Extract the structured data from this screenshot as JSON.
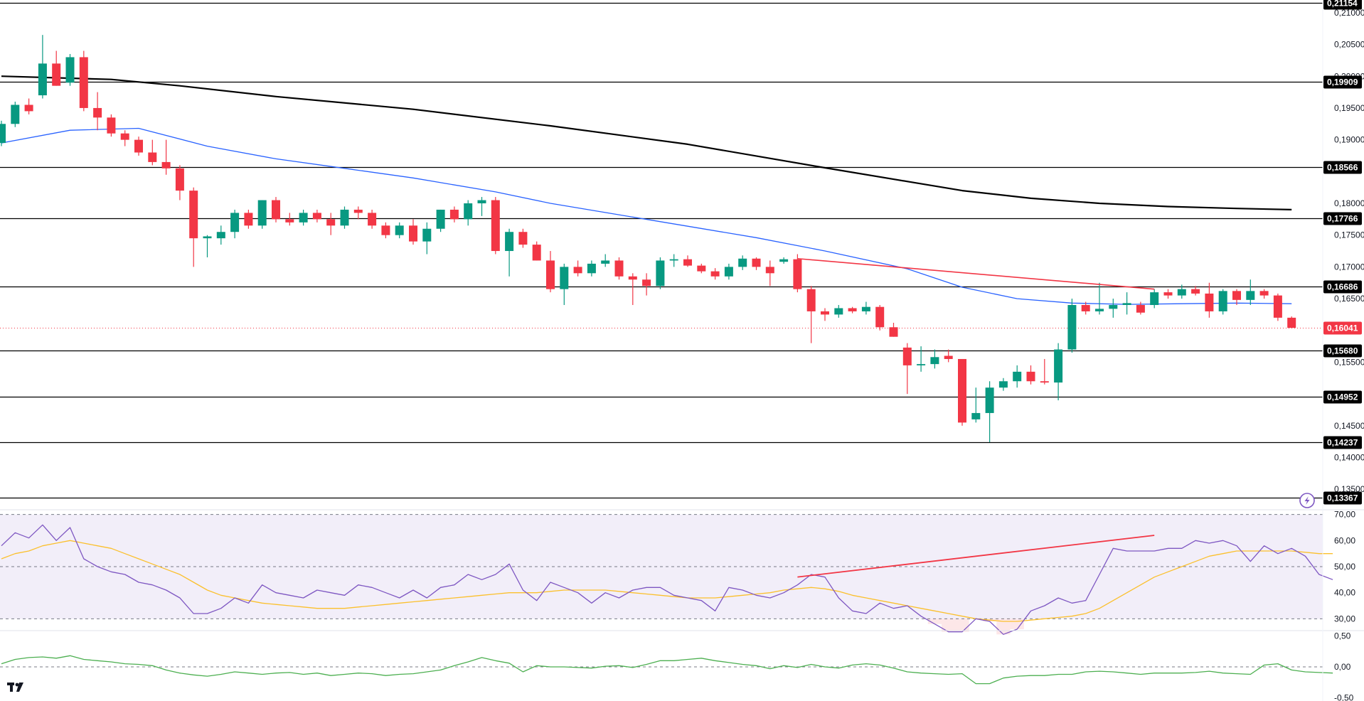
{
  "chart_data": [
    {
      "type": "candlestick",
      "colors": {
        "up": "#089981",
        "down": "#f23645",
        "ma_fast": "#2962ff",
        "ma_slow": "#000000",
        "trendline": "#f23645",
        "level": "#000000",
        "last_price": "#f23645"
      },
      "price_axis": {
        "ylim": [
          0.132,
          0.212
        ],
        "ticks": [
          "0,21000",
          "0,20500",
          "0,20000",
          "0,19500",
          "0,19000",
          "0,18000",
          "0,17500",
          "0,17000",
          "0,16500",
          "0,15500",
          "0,14500",
          "0,14000",
          "0,13500"
        ],
        "tick_values": [
          0.21,
          0.205,
          0.2,
          0.195,
          0.19,
          0.18,
          0.175,
          0.17,
          0.165,
          0.155,
          0.145,
          0.14,
          0.135
        ]
      },
      "levels": [
        {
          "label": "0,21154",
          "value": 0.21154
        },
        {
          "label": "0,19909",
          "value": 0.19909
        },
        {
          "label": "0,18566",
          "value": 0.18566
        },
        {
          "label": "0,17766",
          "value": 0.17766
        },
        {
          "label": "0,16686",
          "value": 0.16686
        },
        {
          "label": "0,15680",
          "value": 0.1568
        },
        {
          "label": "0,14952",
          "value": 0.14952
        },
        {
          "label": "0,14237",
          "value": 0.14237
        },
        {
          "label": "0,13367",
          "value": 0.13367
        }
      ],
      "last_price": {
        "label": "0,16041",
        "value": 0.16041
      },
      "candles": [
        [
          0.1895,
          0.193,
          0.189,
          0.1925
        ],
        [
          0.1925,
          0.196,
          0.192,
          0.1955
        ],
        [
          0.1955,
          0.1965,
          0.194,
          0.1945
        ],
        [
          0.197,
          0.2065,
          0.1965,
          0.202
        ],
        [
          0.202,
          0.204,
          0.1985,
          0.1985
        ],
        [
          0.199,
          0.2035,
          0.1985,
          0.203
        ],
        [
          0.203,
          0.204,
          0.1945,
          0.195
        ],
        [
          0.195,
          0.1975,
          0.1915,
          0.1935
        ],
        [
          0.1935,
          0.194,
          0.1905,
          0.191
        ],
        [
          0.191,
          0.1915,
          0.189,
          0.19
        ],
        [
          0.19,
          0.1905,
          0.1875,
          0.188
        ],
        [
          0.188,
          0.19,
          0.186,
          0.1865
        ],
        [
          0.1865,
          0.19,
          0.1845,
          0.1855
        ],
        [
          0.1855,
          0.186,
          0.1805,
          0.182
        ],
        [
          0.182,
          0.1825,
          0.17,
          0.1745
        ],
        [
          0.1745,
          0.175,
          0.1715,
          0.1748
        ],
        [
          0.1745,
          0.1765,
          0.1735,
          0.1755
        ],
        [
          0.1755,
          0.179,
          0.1745,
          0.1785
        ],
        [
          0.1785,
          0.179,
          0.176,
          0.1765
        ],
        [
          0.1765,
          0.1805,
          0.176,
          0.1805
        ],
        [
          0.1805,
          0.181,
          0.177,
          0.1775
        ],
        [
          0.1775,
          0.1785,
          0.1765,
          0.177
        ],
        [
          0.177,
          0.179,
          0.1765,
          0.1785
        ],
        [
          0.1785,
          0.179,
          0.177,
          0.1775
        ],
        [
          0.1775,
          0.1785,
          0.175,
          0.1765
        ],
        [
          0.1765,
          0.1795,
          0.176,
          0.179
        ],
        [
          0.179,
          0.1795,
          0.1775,
          0.1785
        ],
        [
          0.1785,
          0.179,
          0.176,
          0.1765
        ],
        [
          0.1765,
          0.177,
          0.1745,
          0.175
        ],
        [
          0.175,
          0.177,
          0.1745,
          0.1765
        ],
        [
          0.1765,
          0.1775,
          0.1735,
          0.174
        ],
        [
          0.174,
          0.177,
          0.172,
          0.176
        ],
        [
          0.176,
          0.179,
          0.1755,
          0.179
        ],
        [
          0.179,
          0.1795,
          0.177,
          0.1775
        ],
        [
          0.1775,
          0.1805,
          0.1765,
          0.18
        ],
        [
          0.18,
          0.181,
          0.178,
          0.1805
        ],
        [
          0.1805,
          0.181,
          0.172,
          0.1725
        ],
        [
          0.1725,
          0.176,
          0.1685,
          0.1755
        ],
        [
          0.1755,
          0.176,
          0.173,
          0.1735
        ],
        [
          0.1735,
          0.174,
          0.171,
          0.171
        ],
        [
          0.171,
          0.1725,
          0.166,
          0.1665
        ],
        [
          0.1665,
          0.1705,
          0.164,
          0.17
        ],
        [
          0.17,
          0.171,
          0.1685,
          0.169
        ],
        [
          0.169,
          0.171,
          0.1685,
          0.1705
        ],
        [
          0.1705,
          0.172,
          0.17,
          0.171
        ],
        [
          0.171,
          0.1715,
          0.168,
          0.1685
        ],
        [
          0.1685,
          0.169,
          0.164,
          0.168
        ],
        [
          0.168,
          0.169,
          0.1655,
          0.167
        ],
        [
          0.167,
          0.1715,
          0.1665,
          0.171
        ],
        [
          0.171,
          0.172,
          0.17,
          0.1712
        ],
        [
          0.1712,
          0.1718,
          0.17,
          0.1702
        ],
        [
          0.1702,
          0.1705,
          0.169,
          0.1693
        ],
        [
          0.1693,
          0.1698,
          0.168,
          0.1685
        ],
        [
          0.1685,
          0.1705,
          0.168,
          0.17
        ],
        [
          0.17,
          0.1718,
          0.1695,
          0.1713
        ],
        [
          0.1713,
          0.1715,
          0.1695,
          0.17
        ],
        [
          0.17,
          0.171,
          0.167,
          0.169
        ],
        [
          0.1708,
          0.1715,
          0.1705,
          0.1712
        ],
        [
          0.1712,
          0.172,
          0.166,
          0.1665
        ],
        [
          0.1665,
          0.167,
          0.158,
          0.163
        ],
        [
          0.163,
          0.1635,
          0.1615,
          0.1625
        ],
        [
          0.1625,
          0.164,
          0.162,
          0.1635
        ],
        [
          0.1635,
          0.1637,
          0.1627,
          0.163
        ],
        [
          0.163,
          0.1645,
          0.1625,
          0.1637
        ],
        [
          0.1637,
          0.164,
          0.16,
          0.1605
        ],
        [
          0.1605,
          0.1612,
          0.159,
          0.159
        ],
        [
          0.1573,
          0.158,
          0.15,
          0.1545
        ],
        [
          0.1545,
          0.1575,
          0.1535,
          0.1547
        ],
        [
          0.1547,
          0.157,
          0.154,
          0.1558
        ],
        [
          0.156,
          0.157,
          0.155,
          0.1555
        ],
        [
          0.1555,
          0.1555,
          0.145,
          0.1455
        ],
        [
          0.146,
          0.151,
          0.1455,
          0.147
        ],
        [
          0.147,
          0.152,
          0.1424,
          0.151
        ],
        [
          0.151,
          0.1525,
          0.1505,
          0.152
        ],
        [
          0.152,
          0.1545,
          0.151,
          0.1535
        ],
        [
          0.1535,
          0.1545,
          0.1515,
          0.152
        ],
        [
          0.152,
          0.1555,
          0.1515,
          0.1518
        ],
        [
          0.1518,
          0.158,
          0.149,
          0.157
        ],
        [
          0.157,
          0.165,
          0.1565,
          0.164
        ],
        [
          0.164,
          0.1645,
          0.1625,
          0.163
        ],
        [
          0.163,
          0.1675,
          0.1625,
          0.1634
        ],
        [
          0.1634,
          0.165,
          0.162,
          0.164
        ],
        [
          0.164,
          0.166,
          0.1625,
          0.1643
        ],
        [
          0.164,
          0.1645,
          0.1625,
          0.1628
        ],
        [
          0.164,
          0.1665,
          0.1635,
          0.166
        ],
        [
          0.166,
          0.1665,
          0.165,
          0.1655
        ],
        [
          0.1655,
          0.1672,
          0.165,
          0.1665
        ],
        [
          0.1665,
          0.167,
          0.1655,
          0.1658
        ],
        [
          0.1658,
          0.1675,
          0.162,
          0.163
        ],
        [
          0.163,
          0.1665,
          0.1625,
          0.1662
        ],
        [
          0.1662,
          0.1665,
          0.164,
          0.1648
        ],
        [
          0.1648,
          0.168,
          0.164,
          0.1662
        ],
        [
          0.1662,
          0.1665,
          0.165,
          0.1655
        ],
        [
          0.1655,
          0.1658,
          0.1615,
          0.162
        ],
        [
          0.162,
          0.1622,
          0.1604,
          0.1604
        ]
      ],
      "ma_fast": [
        [
          0,
          0.1895
        ],
        [
          5,
          0.1915
        ],
        [
          10,
          0.1918
        ],
        [
          15,
          0.189
        ],
        [
          20,
          0.187
        ],
        [
          25,
          0.1855
        ],
        [
          30,
          0.184
        ],
        [
          36,
          0.1818
        ],
        [
          40,
          0.18
        ],
        [
          45,
          0.1782
        ],
        [
          50,
          0.1764
        ],
        [
          55,
          0.1746
        ],
        [
          60,
          0.1725
        ],
        [
          66,
          0.1697
        ],
        [
          70,
          0.1668
        ],
        [
          74,
          0.165
        ],
        [
          78,
          0.1643
        ],
        [
          82,
          0.1641
        ],
        [
          86,
          0.1642
        ],
        [
          90,
          0.1643
        ],
        [
          94,
          0.1642
        ]
      ],
      "ma_slow": [
        [
          0,
          0.2
        ],
        [
          8,
          0.1995
        ],
        [
          13,
          0.1985
        ],
        [
          20,
          0.1968
        ],
        [
          30,
          0.1948
        ],
        [
          40,
          0.1922
        ],
        [
          50,
          0.1893
        ],
        [
          60,
          0.1856
        ],
        [
          70,
          0.182
        ],
        [
          75,
          0.1808
        ],
        [
          80,
          0.18
        ],
        [
          85,
          0.1795
        ],
        [
          90,
          0.1792
        ],
        [
          94,
          0.179
        ]
      ],
      "trendline": [
        [
          58,
          0.1713
        ],
        [
          84,
          0.1665
        ]
      ]
    },
    {
      "type": "line",
      "ylim": [
        26,
        71
      ],
      "ticks": [
        "70,00",
        "60,00",
        "50,00",
        "40,00",
        "30,00"
      ],
      "tick_values": [
        70,
        60,
        50,
        40,
        30
      ],
      "band": [
        30,
        70
      ],
      "colors": {
        "rsi": "#7e57c2",
        "signal": "#fbc02d",
        "trendline": "#f23645",
        "band": "#7e57c2"
      },
      "rsi": [
        58,
        63,
        61,
        66,
        60,
        65,
        53,
        50,
        48,
        47,
        44,
        43,
        41,
        38,
        32,
        32,
        34,
        38,
        36,
        43,
        40,
        39,
        38,
        41,
        40,
        39,
        43,
        42,
        40,
        38,
        41,
        38,
        42,
        43,
        47,
        45,
        47,
        51,
        41,
        37,
        44,
        42,
        40,
        36,
        40,
        38,
        41,
        42,
        42,
        39,
        38,
        37,
        33,
        42,
        41,
        39,
        38,
        40,
        43,
        47,
        46,
        38,
        33,
        32,
        36,
        34,
        35,
        31,
        28,
        25,
        25,
        30,
        29,
        24,
        26,
        33,
        35,
        38,
        36,
        37,
        47,
        57,
        56,
        56,
        56,
        57,
        57,
        60,
        59,
        60,
        58,
        52,
        58,
        55,
        57,
        54,
        47,
        45
      ],
      "signal": [
        53,
        55,
        56,
        58,
        59,
        60,
        59,
        58,
        57,
        55,
        53,
        51,
        49,
        47,
        44,
        41,
        39,
        38,
        37,
        36,
        35.5,
        35,
        34.5,
        34,
        34,
        34,
        34.5,
        35,
        35.5,
        36,
        36.5,
        37,
        37.5,
        38,
        38.5,
        39,
        39.5,
        40,
        40,
        40,
        40.5,
        41,
        41,
        41,
        41,
        40.5,
        40,
        39.5,
        39,
        38.5,
        38,
        38,
        38,
        38.5,
        39,
        39.5,
        40,
        41,
        41.5,
        42,
        41.5,
        40.5,
        39,
        38,
        37,
        36,
        35,
        34,
        33,
        32,
        31,
        30,
        29.5,
        29,
        29,
        29.5,
        30,
        30.5,
        31,
        32,
        34,
        37,
        40,
        43,
        46,
        48,
        50,
        52,
        54,
        55,
        56,
        56,
        56,
        56,
        56,
        55.5,
        55,
        55
      ],
      "trendline": [
        [
          58,
          46
        ],
        [
          84,
          62
        ]
      ]
    },
    {
      "type": "line",
      "ylim": [
        -0.55,
        0.55
      ],
      "ticks": [
        "0,50",
        "0,00",
        "-0,50"
      ],
      "tick_values": [
        0.5,
        0,
        -0.5
      ],
      "colors": {
        "line": "#4caf50",
        "zero": "#787b86"
      },
      "values": [
        0.05,
        0.12,
        0.15,
        0.16,
        0.14,
        0.18,
        0.12,
        0.1,
        0.08,
        0.05,
        0.04,
        0.02,
        -0.05,
        -0.1,
        -0.13,
        -0.15,
        -0.12,
        -0.08,
        -0.1,
        -0.12,
        -0.1,
        -0.09,
        -0.12,
        -0.1,
        -0.14,
        -0.12,
        -0.1,
        -0.11,
        -0.14,
        -0.12,
        -0.11,
        -0.08,
        -0.05,
        0.02,
        0.08,
        0.15,
        0.1,
        0.06,
        -0.08,
        0.02,
        0.0,
        0.0,
        -0.01,
        -0.02,
        0.01,
        0.02,
        -0.01,
        0.04,
        0.1,
        0.1,
        0.12,
        0.14,
        0.1,
        0.07,
        0.04,
        0.02,
        -0.03,
        0.02,
        -0.01,
        0.04,
        0.0,
        -0.02,
        0.03,
        0.05,
        0.03,
        -0.02,
        -0.08,
        -0.1,
        -0.11,
        -0.12,
        -0.11,
        -0.27,
        -0.27,
        -0.18,
        -0.15,
        -0.14,
        -0.14,
        -0.12,
        -0.12,
        -0.08,
        -0.07,
        -0.08,
        -0.1,
        -0.12,
        -0.1,
        -0.1,
        -0.1,
        -0.09,
        -0.07,
        -0.1,
        -0.11,
        -0.12,
        0.03,
        0.05,
        -0.05,
        -0.08,
        -0.09,
        -0.1
      ]
    }
  ],
  "branding": {
    "logo_text": "17"
  },
  "icons": {
    "lightning": "lightning-icon"
  }
}
